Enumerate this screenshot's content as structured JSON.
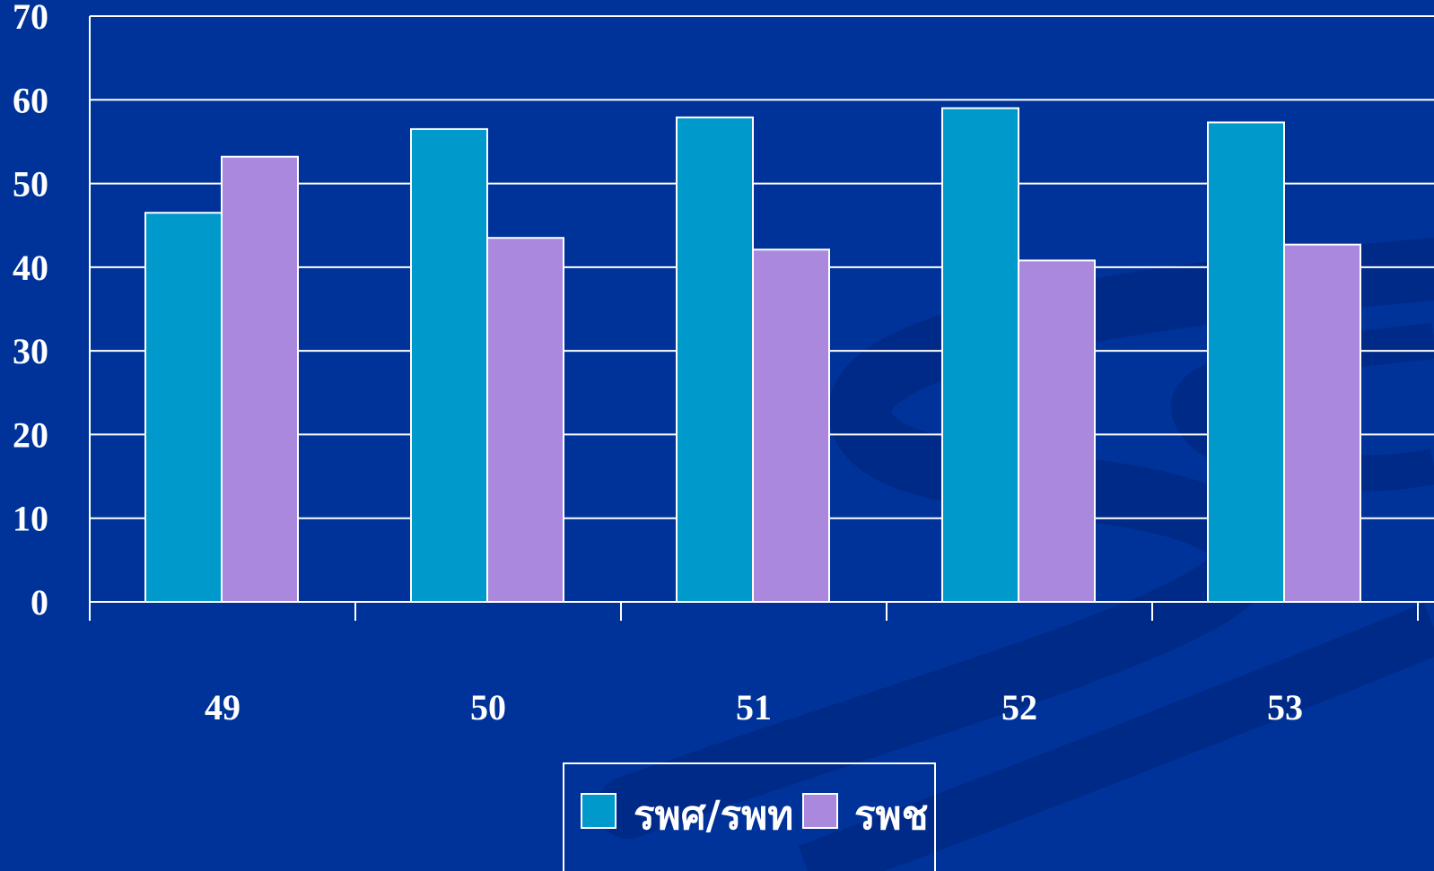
{
  "chart_data": {
    "type": "bar",
    "categories": [
      "49",
      "50",
      "51",
      "52",
      "53"
    ],
    "series": [
      {
        "name": "รพศ/รพท",
        "values": [
          46.5,
          56.5,
          57.9,
          59.0,
          57.3
        ]
      },
      {
        "name": "รพช",
        "values": [
          53.2,
          43.5,
          42.1,
          40.8,
          42.7
        ]
      }
    ],
    "ylim": [
      0,
      70
    ],
    "yticks": [
      "0",
      "10",
      "20",
      "30",
      "40",
      "50",
      "60",
      "70"
    ],
    "title": "",
    "xlabel": "",
    "ylabel": "",
    "grid": true,
    "legend_position": "bottom-center"
  },
  "colors": {
    "background": "#003399",
    "swirl": "#002a87",
    "series": [
      "#0099cc",
      "#aa88dd"
    ],
    "bar_outline": "#ffffff",
    "grid": "#ffffff",
    "text": "#ffffff"
  }
}
